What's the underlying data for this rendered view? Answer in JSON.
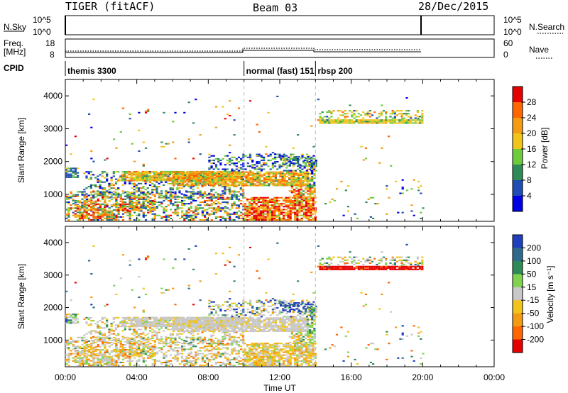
{
  "header": {
    "radar": "TIGER (fitACF)",
    "beam": "Beam 03",
    "date": "28/Dec/2015"
  },
  "top_panels": {
    "nsky": {
      "label": "N.Sky",
      "ticks": [
        "10^5",
        "10^0"
      ]
    },
    "nsearch": {
      "label": "N.Search",
      "ticks": [
        "10^5",
        "10^0"
      ]
    },
    "freq": {
      "label_line1": "Freq.",
      "label_line2": "[MHz]",
      "ticks": [
        "18",
        "8"
      ]
    },
    "nave": {
      "label": "Nave",
      "ticks": [
        "60",
        "0"
      ]
    },
    "cpid": {
      "label": "CPID",
      "segments": [
        {
          "name": "themis 3300",
          "start_hour": 0.0,
          "end_hour": 10.0
        },
        {
          "name": "normal (fast) 151",
          "start_hour": 10.0,
          "end_hour": 14.0
        },
        {
          "name": "rbsp 200",
          "start_hour": 14.0,
          "end_hour": 20.0
        }
      ]
    }
  },
  "chart_data": [
    {
      "type": "heatmap",
      "title": "",
      "xlabel": "",
      "ylabel": "Slant Range [km]",
      "xlim": [
        0,
        24
      ],
      "ylim": [
        180,
        4500
      ],
      "yticks": [
        1000,
        2000,
        3000,
        4000
      ],
      "colorbar": {
        "label": "Power [dB]",
        "ticks": [
          "4",
          "8",
          "12",
          "16",
          "20",
          "24",
          "28"
        ],
        "colors": [
          "#0000e6",
          "#1f4db3",
          "#2e8b57",
          "#6ecb3c",
          "#f0c419",
          "#f39c12",
          "#ff6600",
          "#e60000"
        ]
      },
      "regions": [
        {
          "t": [
            0.0,
            10.0
          ],
          "range": [
            180,
            2100
          ],
          "note": "themis mixed power"
        },
        {
          "t": [
            5.5,
            14.0
          ],
          "range": [
            1200,
            1800
          ],
          "note": "high power band ~20-24 dB"
        },
        {
          "t": [
            10.0,
            14.0
          ],
          "range": [
            200,
            900
          ],
          "note": "strongest echoes 24-28 dB"
        },
        {
          "t": [
            14.2,
            20.0
          ],
          "range": [
            3150,
            3550
          ],
          "note": "green band ~12-16 dB"
        }
      ]
    },
    {
      "type": "heatmap",
      "title": "",
      "xlabel": "Time UT",
      "ylabel": "Slant Range [km]",
      "xlim": [
        0,
        24
      ],
      "ylim": [
        180,
        4500
      ],
      "yticks": [
        1000,
        2000,
        3000,
        4000
      ],
      "xtick_labels": [
        "00:00",
        "04:00",
        "08:00",
        "12:00",
        "16:00",
        "20:00",
        "00:00"
      ],
      "colorbar": {
        "label": "Velocity [m s⁻¹]",
        "ticks": [
          "200",
          "100",
          "50",
          "15",
          "-15",
          "-50",
          "-100",
          "-200"
        ],
        "colors": [
          "#1f3fbf",
          "#2e6b8a",
          "#2e8b57",
          "#7fd34e",
          "#c8c8c8",
          "#f0c419",
          "#f39c12",
          "#ff6600",
          "#e60000"
        ]
      },
      "regions": [
        {
          "t": [
            0.0,
            14.0
          ],
          "range": [
            180,
            1800
          ],
          "note": "mostly near-zero velocity (grey) with mixed yellow/orange"
        },
        {
          "t": [
            12.0,
            13.8
          ],
          "range": [
            1800,
            2200
          ],
          "note": "blue positive velocities"
        },
        {
          "t": [
            14.2,
            20.0
          ],
          "range": [
            3150,
            3250
          ],
          "note": "red negative velocities band"
        }
      ]
    }
  ]
}
